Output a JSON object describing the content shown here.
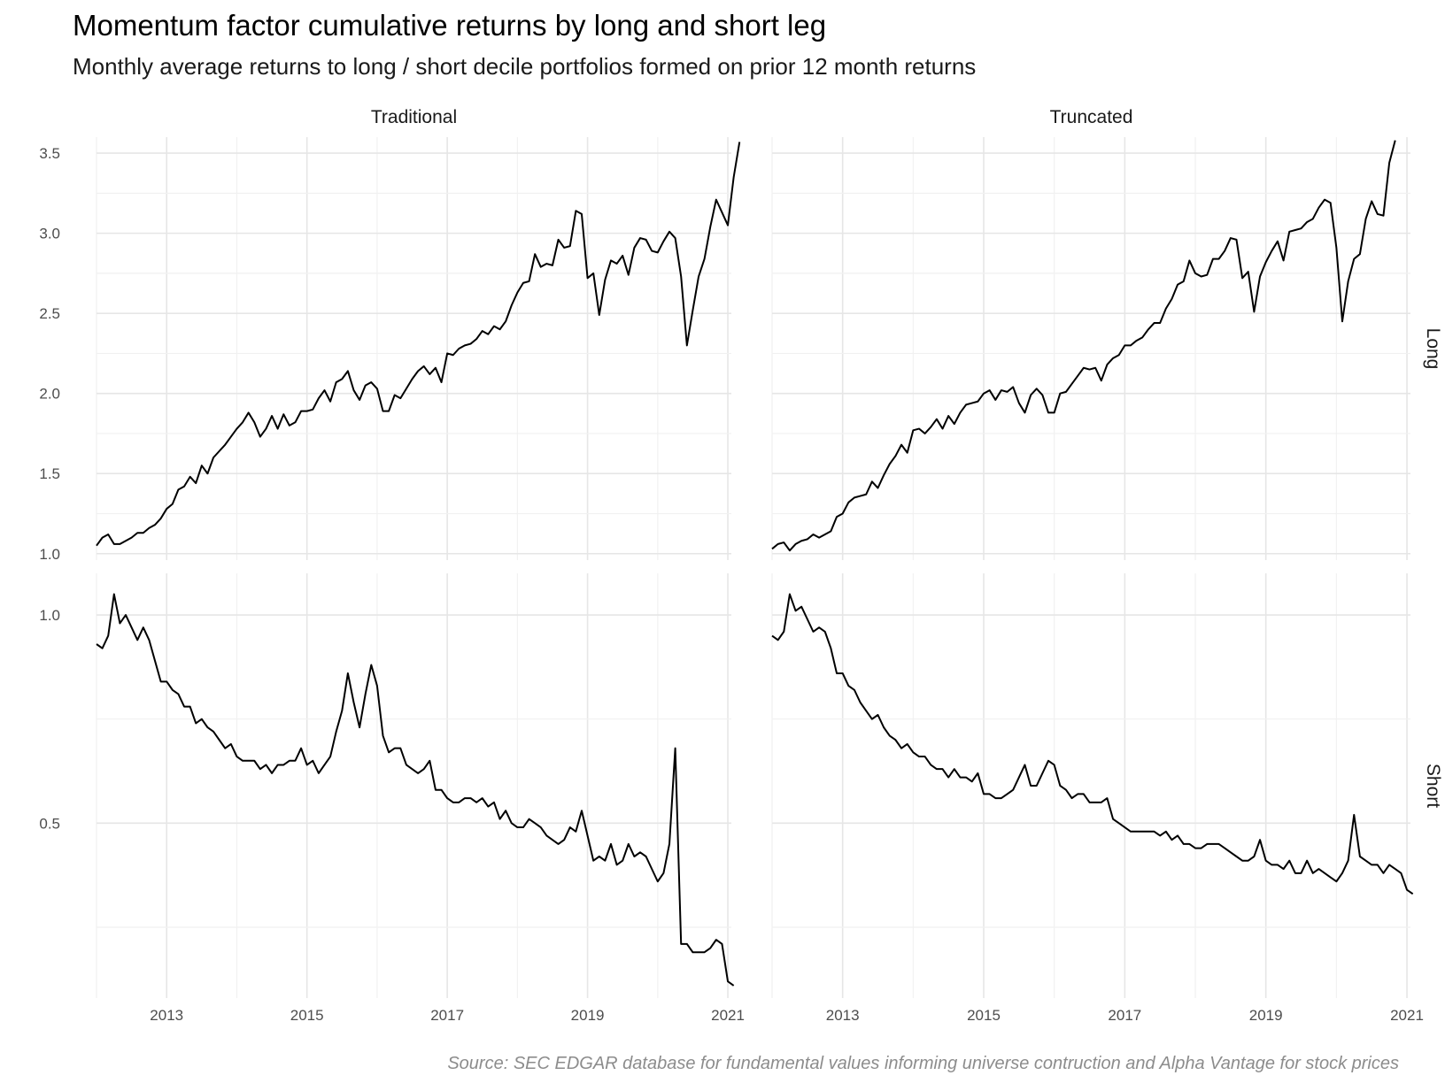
{
  "title": "Momentum factor cumulative returns by long and short leg",
  "subtitle": "Monthly average returns to long / short decile portfolios formed on prior 12 month returns",
  "caption": "Source: SEC EDGAR database for fundamental values informing universe contruction and Alpha Vantage for stock prices",
  "chart_data": {
    "type": "line",
    "facet_columns": [
      "Traditional",
      "Truncated"
    ],
    "facet_rows": [
      "Long",
      "Short"
    ],
    "x_ticks": [
      2013,
      2015,
      2017,
      2019,
      2021
    ],
    "xlim": [
      2012.0,
      2021.05
    ],
    "grid": true,
    "line_color": "#000000",
    "rows": [
      {
        "name": "Long",
        "ylim": [
          0.96,
          3.6
        ],
        "y_ticks": [
          1.0,
          1.5,
          2.0,
          2.5,
          3.0,
          3.5
        ],
        "y_tick_labels": [
          "1.0",
          "1.5",
          "2.0",
          "2.5",
          "3.0",
          "3.5"
        ]
      },
      {
        "name": "Short",
        "ylim": [
          0.08,
          1.1
        ],
        "y_ticks": [
          0.5,
          1.0
        ],
        "y_tick_labels": [
          "0.5",
          "1.0"
        ]
      }
    ],
    "panels": [
      {
        "column": "Traditional",
        "row": "Long",
        "x_start": "2012-01",
        "values": [
          1.05,
          1.1,
          1.12,
          1.06,
          1.06,
          1.08,
          1.1,
          1.13,
          1.13,
          1.16,
          1.18,
          1.22,
          1.28,
          1.31,
          1.4,
          1.42,
          1.48,
          1.44,
          1.55,
          1.5,
          1.6,
          1.64,
          1.68,
          1.73,
          1.78,
          1.82,
          1.88,
          1.82,
          1.73,
          1.78,
          1.86,
          1.78,
          1.87,
          1.8,
          1.82,
          1.89,
          1.89,
          1.9,
          1.97,
          2.02,
          1.95,
          2.07,
          2.09,
          2.14,
          2.02,
          1.96,
          2.05,
          2.07,
          2.03,
          1.89,
          1.89,
          1.99,
          1.97,
          2.03,
          2.09,
          2.14,
          2.17,
          2.12,
          2.16,
          2.07,
          2.25,
          2.24,
          2.28,
          2.3,
          2.31,
          2.34,
          2.39,
          2.37,
          2.42,
          2.4,
          2.45,
          2.55,
          2.63,
          2.69,
          2.7,
          2.87,
          2.79,
          2.81,
          2.8,
          2.96,
          2.91,
          2.92,
          3.14,
          3.12,
          2.72,
          2.75,
          2.49,
          2.71,
          2.83,
          2.81,
          2.86,
          2.74,
          2.91,
          2.97,
          2.96,
          2.89,
          2.88,
          2.95,
          3.01,
          2.97,
          2.73,
          2.3,
          2.52,
          2.73,
          2.84,
          3.04,
          3.21,
          3.13,
          3.05,
          3.35,
          3.57
        ]
      },
      {
        "column": "Truncated",
        "row": "Long",
        "x_start": "2012-01",
        "values": [
          1.03,
          1.06,
          1.07,
          1.02,
          1.06,
          1.08,
          1.09,
          1.12,
          1.1,
          1.12,
          1.14,
          1.23,
          1.25,
          1.32,
          1.35,
          1.36,
          1.37,
          1.45,
          1.41,
          1.49,
          1.56,
          1.61,
          1.68,
          1.63,
          1.77,
          1.78,
          1.75,
          1.79,
          1.84,
          1.78,
          1.86,
          1.81,
          1.88,
          1.93,
          1.94,
          1.95,
          2.0,
          2.02,
          1.96,
          2.02,
          2.01,
          2.04,
          1.94,
          1.88,
          1.99,
          2.03,
          1.99,
          1.88,
          1.88,
          2.0,
          2.01,
          2.06,
          2.11,
          2.16,
          2.15,
          2.16,
          2.08,
          2.18,
          2.22,
          2.24,
          2.3,
          2.3,
          2.33,
          2.35,
          2.4,
          2.44,
          2.44,
          2.53,
          2.59,
          2.68,
          2.7,
          2.83,
          2.75,
          2.73,
          2.74,
          2.84,
          2.84,
          2.89,
          2.97,
          2.96,
          2.72,
          2.76,
          2.51,
          2.73,
          2.82,
          2.89,
          2.95,
          2.83,
          3.01,
          3.02,
          3.03,
          3.07,
          3.09,
          3.16,
          3.21,
          3.19,
          2.91,
          2.45,
          2.7,
          2.84,
          2.87,
          3.09,
          3.2,
          3.12,
          3.11,
          3.44,
          3.58
        ]
      },
      {
        "column": "Traditional",
        "row": "Short",
        "x_start": "2012-01",
        "values": [
          0.93,
          0.92,
          0.95,
          1.05,
          0.98,
          1.0,
          0.97,
          0.94,
          0.97,
          0.94,
          0.89,
          0.84,
          0.84,
          0.82,
          0.81,
          0.78,
          0.78,
          0.74,
          0.75,
          0.73,
          0.72,
          0.7,
          0.68,
          0.69,
          0.66,
          0.65,
          0.65,
          0.65,
          0.63,
          0.64,
          0.62,
          0.64,
          0.64,
          0.65,
          0.65,
          0.68,
          0.64,
          0.65,
          0.62,
          0.64,
          0.66,
          0.72,
          0.77,
          0.86,
          0.79,
          0.73,
          0.81,
          0.88,
          0.83,
          0.71,
          0.67,
          0.68,
          0.68,
          0.64,
          0.63,
          0.62,
          0.63,
          0.65,
          0.58,
          0.58,
          0.56,
          0.55,
          0.55,
          0.56,
          0.56,
          0.55,
          0.56,
          0.54,
          0.55,
          0.51,
          0.53,
          0.5,
          0.49,
          0.49,
          0.51,
          0.5,
          0.49,
          0.47,
          0.46,
          0.45,
          0.46,
          0.49,
          0.48,
          0.53,
          0.47,
          0.41,
          0.42,
          0.41,
          0.45,
          0.4,
          0.41,
          0.45,
          0.42,
          0.43,
          0.42,
          0.39,
          0.36,
          0.38,
          0.45,
          0.68,
          0.21,
          0.21,
          0.19,
          0.19,
          0.19,
          0.2,
          0.22,
          0.21,
          0.12,
          0.11
        ]
      },
      {
        "column": "Truncated",
        "row": "Short",
        "x_start": "2012-01",
        "values": [
          0.95,
          0.94,
          0.96,
          1.05,
          1.01,
          1.02,
          0.99,
          0.96,
          0.97,
          0.96,
          0.92,
          0.86,
          0.86,
          0.83,
          0.82,
          0.79,
          0.77,
          0.75,
          0.76,
          0.73,
          0.71,
          0.7,
          0.68,
          0.69,
          0.67,
          0.66,
          0.66,
          0.64,
          0.63,
          0.63,
          0.61,
          0.63,
          0.61,
          0.61,
          0.6,
          0.62,
          0.57,
          0.57,
          0.56,
          0.56,
          0.57,
          0.58,
          0.61,
          0.64,
          0.59,
          0.59,
          0.62,
          0.65,
          0.64,
          0.59,
          0.58,
          0.56,
          0.57,
          0.57,
          0.55,
          0.55,
          0.55,
          0.56,
          0.51,
          0.5,
          0.49,
          0.48,
          0.48,
          0.48,
          0.48,
          0.48,
          0.47,
          0.48,
          0.46,
          0.47,
          0.45,
          0.45,
          0.44,
          0.44,
          0.45,
          0.45,
          0.45,
          0.44,
          0.43,
          0.42,
          0.41,
          0.41,
          0.42,
          0.46,
          0.41,
          0.4,
          0.4,
          0.39,
          0.41,
          0.38,
          0.38,
          0.41,
          0.38,
          0.39,
          0.38,
          0.37,
          0.36,
          0.38,
          0.41,
          0.52,
          0.42,
          0.41,
          0.4,
          0.4,
          0.38,
          0.4,
          0.39,
          0.38,
          0.34,
          0.33
        ]
      }
    ]
  }
}
